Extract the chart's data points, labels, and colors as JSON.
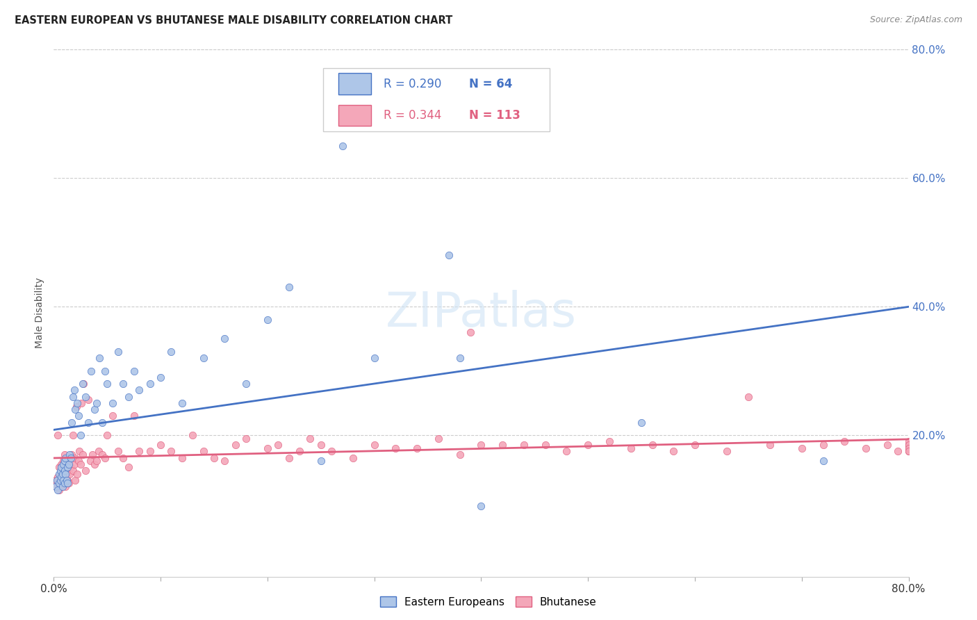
{
  "title": "EASTERN EUROPEAN VS BHUTANESE MALE DISABILITY CORRELATION CHART",
  "source": "Source: ZipAtlas.com",
  "ylabel": "Male Disability",
  "x_min": 0.0,
  "x_max": 0.8,
  "y_min": 0.0,
  "y_max": 0.8,
  "eastern_european_color": "#aec6e8",
  "bhutanese_color": "#f4a7b9",
  "eastern_european_line_color": "#4472c4",
  "bhutanese_line_color": "#e06080",
  "R_eastern": 0.29,
  "N_eastern": 64,
  "R_bhutanese": 0.344,
  "N_bhutanese": 113,
  "eastern_x": [
    0.002,
    0.003,
    0.004,
    0.005,
    0.005,
    0.006,
    0.006,
    0.007,
    0.007,
    0.008,
    0.008,
    0.009,
    0.009,
    0.01,
    0.01,
    0.01,
    0.011,
    0.011,
    0.012,
    0.013,
    0.013,
    0.014,
    0.015,
    0.016,
    0.017,
    0.018,
    0.019,
    0.02,
    0.022,
    0.023,
    0.025,
    0.027,
    0.03,
    0.032,
    0.035,
    0.038,
    0.04,
    0.043,
    0.045,
    0.048,
    0.05,
    0.055,
    0.06,
    0.065,
    0.07,
    0.075,
    0.08,
    0.09,
    0.1,
    0.11,
    0.12,
    0.14,
    0.16,
    0.18,
    0.2,
    0.22,
    0.25,
    0.27,
    0.3,
    0.37,
    0.38,
    0.4,
    0.55,
    0.72
  ],
  "eastern_y": [
    0.12,
    0.13,
    0.115,
    0.125,
    0.14,
    0.13,
    0.145,
    0.135,
    0.15,
    0.12,
    0.14,
    0.13,
    0.155,
    0.125,
    0.145,
    0.16,
    0.14,
    0.165,
    0.13,
    0.125,
    0.15,
    0.155,
    0.17,
    0.165,
    0.22,
    0.26,
    0.27,
    0.24,
    0.25,
    0.23,
    0.2,
    0.28,
    0.26,
    0.22,
    0.3,
    0.24,
    0.25,
    0.32,
    0.22,
    0.3,
    0.28,
    0.25,
    0.33,
    0.28,
    0.26,
    0.3,
    0.27,
    0.28,
    0.29,
    0.33,
    0.25,
    0.32,
    0.35,
    0.28,
    0.38,
    0.43,
    0.16,
    0.65,
    0.32,
    0.48,
    0.32,
    0.09,
    0.22,
    0.16
  ],
  "bhutanese_x": [
    0.001,
    0.002,
    0.003,
    0.004,
    0.004,
    0.005,
    0.005,
    0.006,
    0.006,
    0.007,
    0.007,
    0.008,
    0.008,
    0.009,
    0.009,
    0.01,
    0.01,
    0.01,
    0.011,
    0.011,
    0.012,
    0.012,
    0.013,
    0.013,
    0.014,
    0.015,
    0.015,
    0.016,
    0.017,
    0.018,
    0.018,
    0.019,
    0.02,
    0.02,
    0.021,
    0.022,
    0.023,
    0.024,
    0.025,
    0.026,
    0.027,
    0.028,
    0.03,
    0.032,
    0.034,
    0.036,
    0.038,
    0.04,
    0.042,
    0.045,
    0.048,
    0.05,
    0.055,
    0.06,
    0.065,
    0.07,
    0.075,
    0.08,
    0.09,
    0.1,
    0.11,
    0.12,
    0.13,
    0.14,
    0.15,
    0.16,
    0.17,
    0.18,
    0.2,
    0.21,
    0.22,
    0.23,
    0.24,
    0.25,
    0.26,
    0.28,
    0.3,
    0.32,
    0.34,
    0.36,
    0.38,
    0.39,
    0.4,
    0.42,
    0.44,
    0.46,
    0.48,
    0.5,
    0.52,
    0.54,
    0.56,
    0.58,
    0.6,
    0.63,
    0.65,
    0.67,
    0.7,
    0.72,
    0.74,
    0.76,
    0.78,
    0.79,
    0.8,
    0.8,
    0.8,
    0.8,
    0.8,
    0.8,
    0.8,
    0.8,
    0.8,
    0.8,
    0.8
  ],
  "bhutanese_y": [
    0.13,
    0.12,
    0.125,
    0.135,
    0.2,
    0.115,
    0.15,
    0.125,
    0.14,
    0.12,
    0.155,
    0.13,
    0.145,
    0.125,
    0.16,
    0.13,
    0.145,
    0.17,
    0.12,
    0.155,
    0.14,
    0.165,
    0.13,
    0.155,
    0.125,
    0.14,
    0.165,
    0.15,
    0.17,
    0.145,
    0.2,
    0.155,
    0.13,
    0.165,
    0.245,
    0.14,
    0.16,
    0.175,
    0.155,
    0.25,
    0.17,
    0.28,
    0.145,
    0.255,
    0.16,
    0.17,
    0.155,
    0.16,
    0.175,
    0.17,
    0.165,
    0.2,
    0.23,
    0.175,
    0.165,
    0.15,
    0.23,
    0.175,
    0.175,
    0.185,
    0.175,
    0.165,
    0.2,
    0.175,
    0.165,
    0.16,
    0.185,
    0.195,
    0.18,
    0.185,
    0.165,
    0.175,
    0.195,
    0.185,
    0.175,
    0.165,
    0.185,
    0.18,
    0.18,
    0.195,
    0.17,
    0.36,
    0.185,
    0.185,
    0.185,
    0.185,
    0.175,
    0.185,
    0.19,
    0.18,
    0.185,
    0.175,
    0.185,
    0.175,
    0.26,
    0.185,
    0.18,
    0.185,
    0.19,
    0.18,
    0.185,
    0.175,
    0.18,
    0.185,
    0.175,
    0.185,
    0.175,
    0.185,
    0.185,
    0.19,
    0.185,
    0.18,
    0.175
  ]
}
